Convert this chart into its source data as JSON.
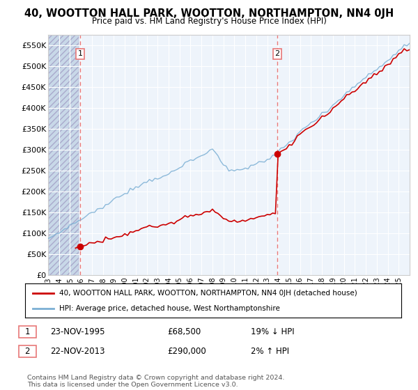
{
  "title": "40, WOOTTON HALL PARK, WOOTTON, NORTHAMPTON, NN4 0JH",
  "subtitle": "Price paid vs. HM Land Registry's House Price Index (HPI)",
  "ylim": [
    0,
    575000
  ],
  "yticks": [
    0,
    50000,
    100000,
    150000,
    200000,
    250000,
    300000,
    350000,
    400000,
    450000,
    500000,
    550000
  ],
  "ytick_labels": [
    "£0",
    "£50K",
    "£100K",
    "£150K",
    "£200K",
    "£250K",
    "£300K",
    "£350K",
    "£400K",
    "£450K",
    "£500K",
    "£550K"
  ],
  "sale1_year": 1995.92,
  "sale1_price": 68500,
  "sale2_year": 2013.92,
  "sale2_price": 290000,
  "legend_line1": "40, WOOTTON HALL PARK, WOOTTON, NORTHAMPTON, NN4 0JH (detached house)",
  "legend_line2": "HPI: Average price, detached house, West Northamptonshire",
  "table_rows": [
    [
      "1",
      "23-NOV-1995",
      "£68,500",
      "19% ↓ HPI"
    ],
    [
      "2",
      "22-NOV-2013",
      "£290,000",
      "2% ↑ HPI"
    ]
  ],
  "footnote": "Contains HM Land Registry data © Crown copyright and database right 2024.\nThis data is licensed under the Open Government Licence v3.0.",
  "property_color": "#cc0000",
  "hpi_color": "#7bafd4",
  "vline_color": "#e87878",
  "bg_hatch_color": "#dce8f5",
  "bg_plain_color": "#eef4fb"
}
